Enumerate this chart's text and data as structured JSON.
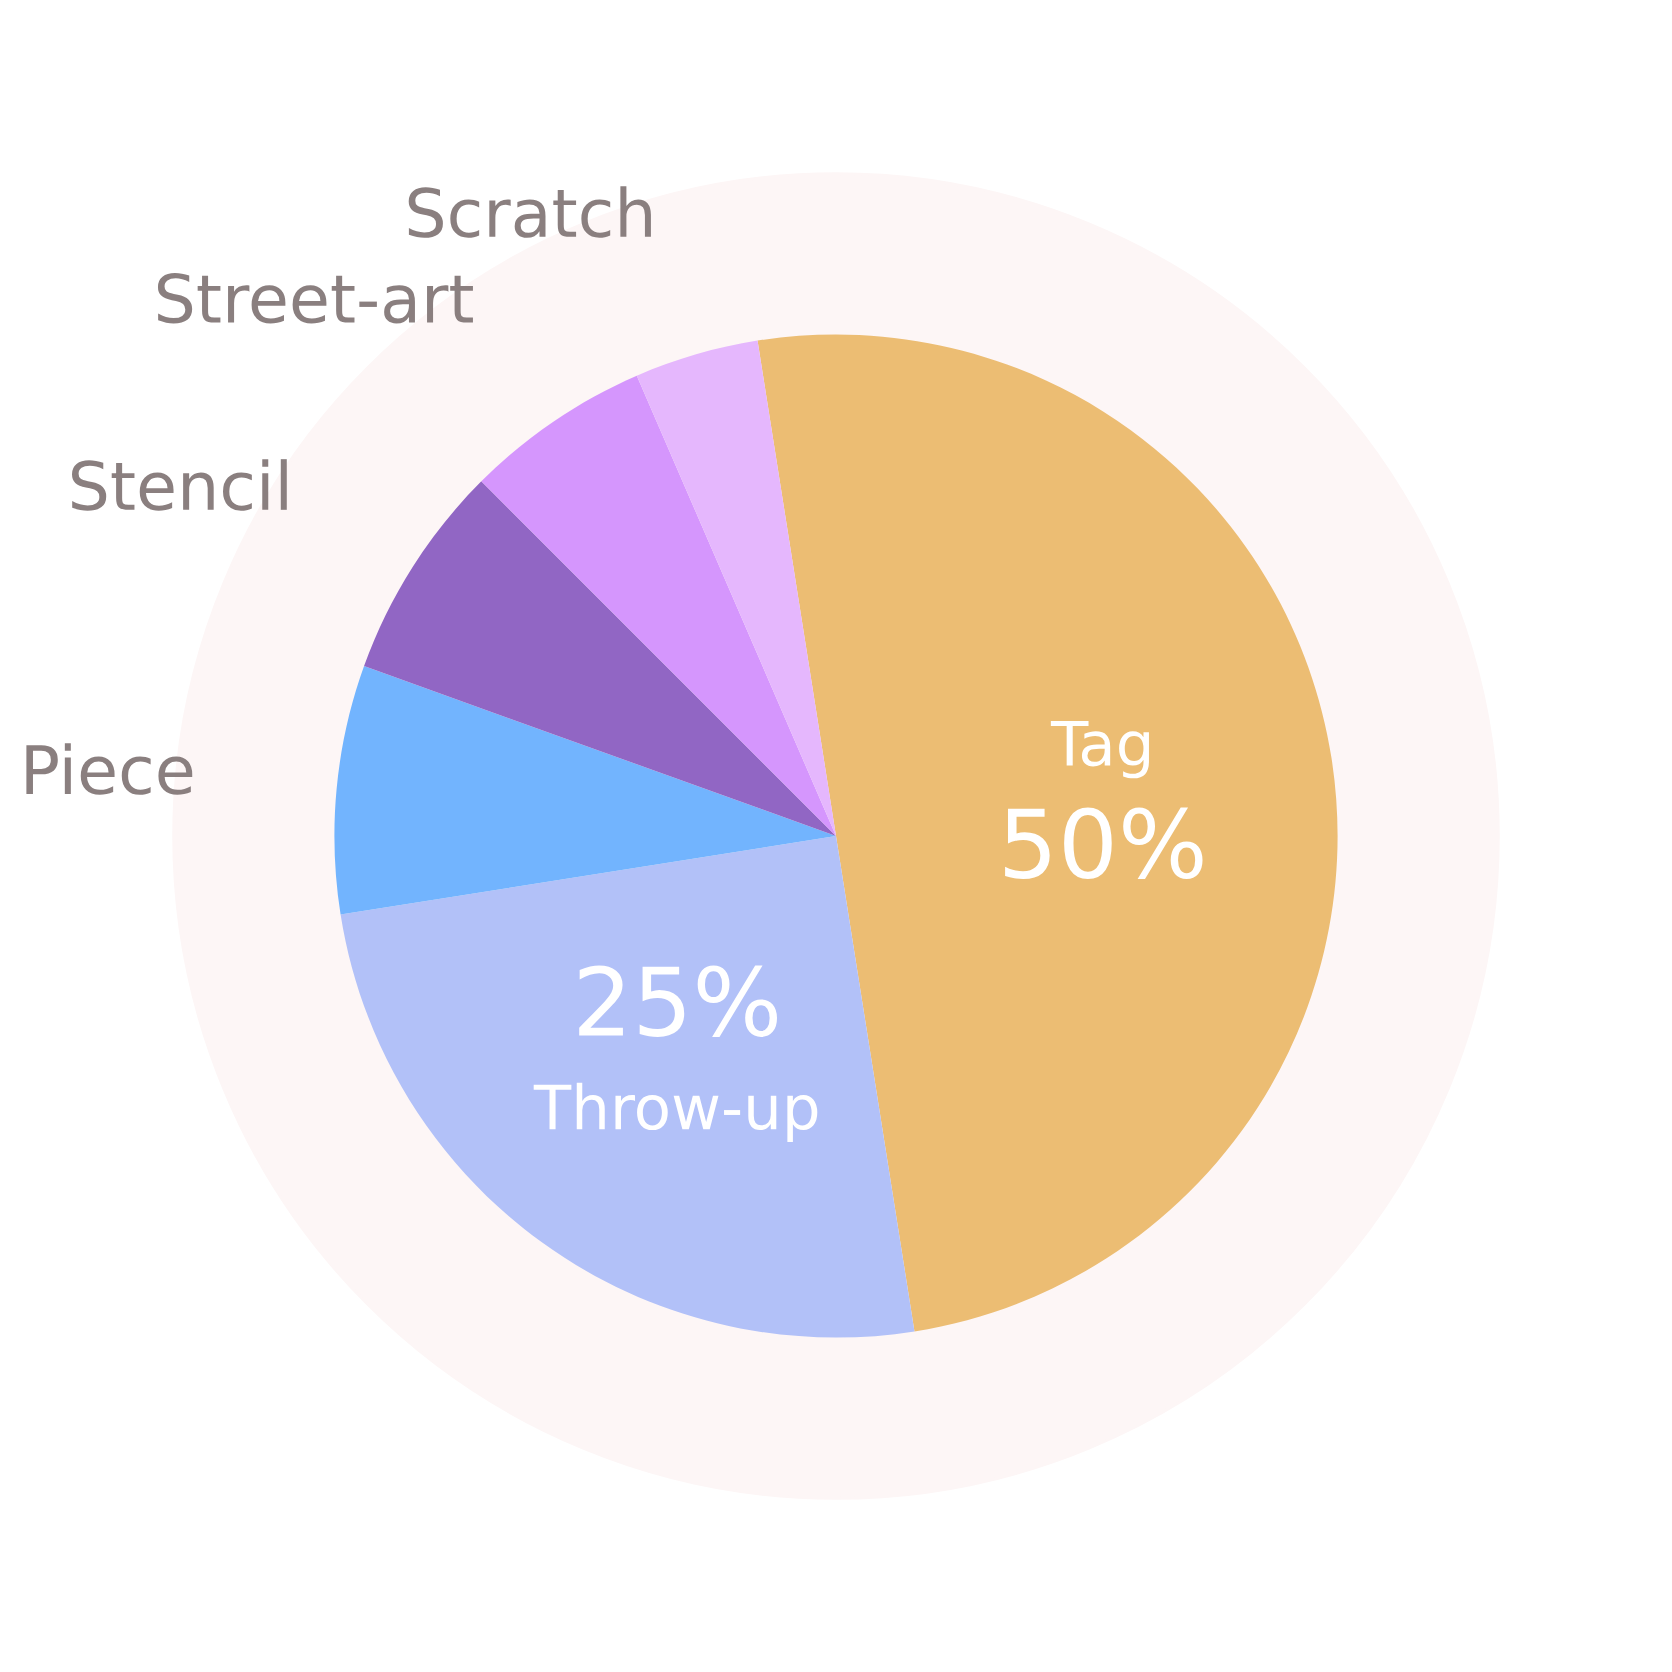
{
  "chart_data": {
    "type": "pie",
    "categories": [
      "Tag",
      "Throw-up",
      "Piece",
      "Stencil",
      "Street-art",
      "Scratch"
    ],
    "values": [
      50,
      25,
      8,
      7,
      6,
      4
    ],
    "value_labels": [
      "50%",
      "25%",
      null,
      null,
      null,
      null
    ],
    "colors": [
      "#ecbd73",
      "#b2c1f8",
      "#72b4fe",
      "#9166c4",
      "#d596fd",
      "#e5b7fd"
    ]
  }
}
